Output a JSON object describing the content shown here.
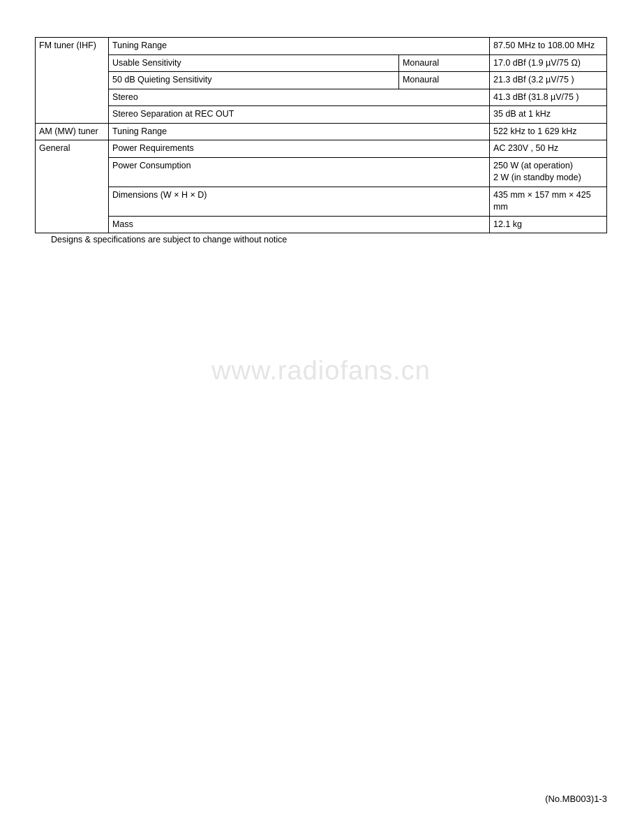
{
  "table": {
    "rows": [
      {
        "cat": "FM tuner (IHF)",
        "spec": "Tuning Range",
        "extra": "",
        "value": "87.50 MHz to 108.00 MHz",
        "catRowspan": 5,
        "specColspan": 2
      },
      {
        "spec": "Usable Sensitivity",
        "extra": "Monaural",
        "value": "17.0 dBf (1.9 µV/75 Ω)"
      },
      {
        "spec": "50 dB Quieting Sensitivity",
        "extra": "Monaural",
        "value": "21.3 dBf (3.2 µV/75 )"
      },
      {
        "spec": "Stereo",
        "value": "41.3 dBf (31.8 µV/75 )",
        "specColspan": 2
      },
      {
        "spec": "Stereo Separation at REC OUT",
        "value": "35 dB at 1 kHz",
        "specColspan": 2
      },
      {
        "cat": "AM (MW) tuner",
        "spec": "Tuning Range",
        "value": " 522 kHz to 1 629 kHz",
        "specColspan": 2
      },
      {
        "cat": "General",
        "spec": "Power Requirements",
        "value": "AC 230V , 50 Hz",
        "catRowspan": 4,
        "specColspan": 2
      },
      {
        "spec": "Power Consumption",
        "value": "250 W (at operation)\n2 W (in standby mode)",
        "specColspan": 2
      },
      {
        "spec": "Dimensions (W × H × D)",
        "value": "435 mm × 157 mm × 425 mm",
        "specColspan": 2
      },
      {
        "spec": "Mass",
        "value": "12.1 kg",
        "specColspan": 2
      }
    ]
  },
  "footnote": "Designs & specifications are subject to change without notice",
  "watermark": "www.radiofans.cn",
  "pageNumber": "(No.MB003)1-3",
  "colors": {
    "border": "#000000",
    "text": "#000000",
    "background": "#ffffff",
    "watermark": "#e5e5e5"
  },
  "typography": {
    "tableFontSize": 12.5,
    "watermarkFontSize": 38,
    "pageNumberFontSize": 13
  }
}
